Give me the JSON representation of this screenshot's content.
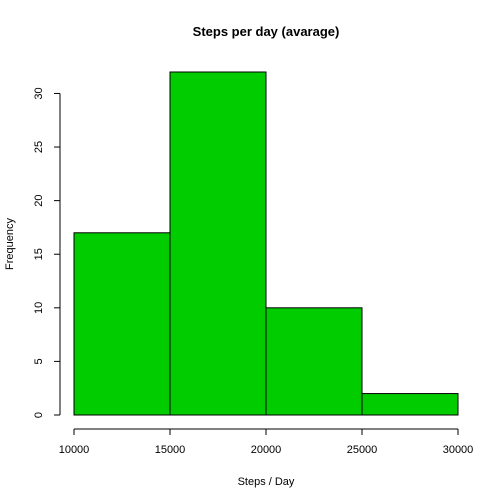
{
  "chart_data": {
    "type": "bar",
    "subtype": "histogram",
    "title": "Steps per day (avarage)",
    "xlabel": "Steps / Day",
    "ylabel": "Frequency",
    "bins": [
      {
        "start": 10000,
        "end": 15000,
        "value": 17
      },
      {
        "start": 15000,
        "end": 20000,
        "value": 32
      },
      {
        "start": 20000,
        "end": 25000,
        "value": 10
      },
      {
        "start": 25000,
        "end": 30000,
        "value": 2
      }
    ],
    "x_ticks": [
      10000,
      15000,
      20000,
      25000,
      30000
    ],
    "y_ticks": [
      0,
      5,
      10,
      15,
      20,
      25,
      30
    ],
    "xlim": [
      10000,
      30000
    ],
    "ylim": [
      0,
      32
    ],
    "bar_color": "#00cc00",
    "grid": false,
    "legend": "none"
  }
}
